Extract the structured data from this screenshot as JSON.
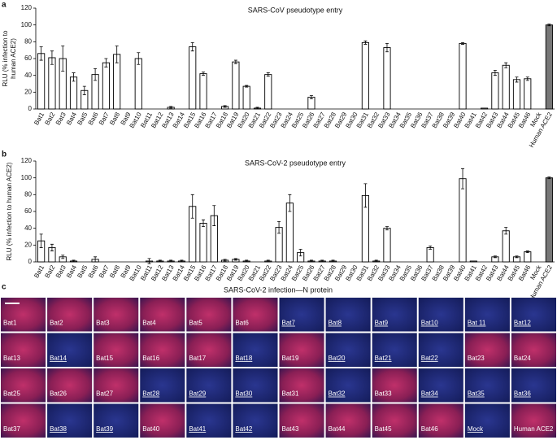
{
  "chart_data": [
    {
      "type": "bar",
      "panel": "a",
      "title": "SARS-CoV pseudotype entry",
      "ylabel": [
        "RLU (% infection to",
        "human ACE2)"
      ],
      "categories": [
        "Bat1",
        "Bat2",
        "Bat3",
        "Bat4",
        "Bat5",
        "Bat6",
        "Bat7",
        "Bat8",
        "Bat9",
        "Bat10",
        "Bat11",
        "Bat12",
        "Bat13",
        "Bat14",
        "Bat15",
        "Bat16",
        "Bat17",
        "Bat18",
        "Bat19",
        "Bat20",
        "Bat21",
        "Bat22",
        "Bat23",
        "Bat24",
        "Bat25",
        "Bat26",
        "Bat27",
        "Bat28",
        "Bat29",
        "Bat30",
        "Bat31",
        "Bat32",
        "Bat33",
        "Bat34",
        "Bat35",
        "Bat36",
        "Bat37",
        "Bat38",
        "Bat39",
        "Bat40",
        "Bat41",
        "Bat42",
        "Bat43",
        "Bat44",
        "Bat45",
        "Bat46",
        "Mock",
        "Human ACE2"
      ],
      "values": [
        66,
        61,
        60,
        38,
        22,
        41,
        55,
        65,
        0,
        60,
        0,
        0,
        2,
        0,
        74,
        42,
        0,
        3,
        56,
        27,
        1,
        41,
        0,
        0,
        0,
        14,
        0,
        0,
        0,
        0,
        79,
        0,
        73,
        0,
        0,
        0,
        0,
        0,
        0,
        78,
        0,
        1,
        43,
        52,
        35,
        36,
        0,
        100
      ],
      "errors": [
        8,
        8,
        15,
        5,
        5,
        7,
        5,
        10,
        0,
        7,
        0,
        0,
        1,
        0,
        5,
        2,
        0,
        1,
        2,
        1,
        1,
        2,
        0,
        0,
        0,
        2,
        0,
        0,
        0,
        0,
        2,
        0,
        5,
        0,
        0,
        0,
        0,
        0,
        0,
        1,
        0,
        0,
        3,
        3,
        3,
        2,
        0,
        1
      ],
      "colors": [
        "#ffffff",
        "#ffffff",
        "#ffffff",
        "#ffffff",
        "#ffffff",
        "#ffffff",
        "#ffffff",
        "#ffffff",
        "#ffffff",
        "#ffffff",
        "#ffffff",
        "#ffffff",
        "#ffffff",
        "#ffffff",
        "#ffffff",
        "#ffffff",
        "#ffffff",
        "#ffffff",
        "#ffffff",
        "#ffffff",
        "#ffffff",
        "#ffffff",
        "#ffffff",
        "#ffffff",
        "#ffffff",
        "#ffffff",
        "#ffffff",
        "#ffffff",
        "#ffffff",
        "#ffffff",
        "#ffffff",
        "#ffffff",
        "#ffffff",
        "#ffffff",
        "#ffffff",
        "#ffffff",
        "#ffffff",
        "#ffffff",
        "#ffffff",
        "#ffffff",
        "#ffffff",
        "#ffffff",
        "#ffffff",
        "#ffffff",
        "#ffffff",
        "#ffffff",
        "#ffffff",
        "#777777"
      ],
      "ylim": [
        0,
        120
      ],
      "yticks": [
        0,
        20,
        40,
        60,
        80,
        100,
        120
      ]
    },
    {
      "type": "bar",
      "panel": "b",
      "title": "SARS-CoV-2 pseudotype entry",
      "ylabel": [
        "RLU (% infection to human ACE2)"
      ],
      "categories": [
        "Bat1",
        "Bat2",
        "Bat3",
        "Bat4",
        "Bat5",
        "Bat6",
        "Bat7",
        "Bat8",
        "Bat9",
        "Bat10",
        "Bat11",
        "Bat12",
        "Bat13",
        "Bat14",
        "Bat15",
        "Bat16",
        "Bat17",
        "Bat18",
        "Bat19",
        "Bat20",
        "Bat21",
        "Bat22",
        "Bat23",
        "Bat24",
        "Bat25",
        "Bat26",
        "Bat27",
        "Bat28",
        "Bat29",
        "Bat30",
        "Bat31",
        "Bat32",
        "Bat33",
        "Bat34",
        "Bat35",
        "Bat36",
        "Bat37",
        "Bat38",
        "Bat39",
        "Bat40",
        "Bat41",
        "Bat42",
        "Bat43",
        "Bat44",
        "Bat45",
        "Bat46",
        "Mock",
        "Human ACE2"
      ],
      "values": [
        25,
        17,
        6,
        1,
        0,
        3,
        0,
        0,
        0,
        0,
        1,
        1,
        1,
        1,
        66,
        46,
        55,
        2,
        3,
        1,
        0,
        1,
        41,
        70,
        11,
        1,
        1,
        1,
        0,
        0,
        79,
        1,
        40,
        0,
        0,
        0,
        17,
        0,
        0,
        99,
        1,
        0,
        6,
        37,
        6,
        12,
        0,
        100
      ],
      "errors": [
        8,
        4,
        2,
        1,
        0,
        3,
        0,
        0,
        0,
        0,
        3,
        1,
        1,
        1,
        14,
        4,
        12,
        1,
        1,
        1,
        0,
        1,
        7,
        10,
        4,
        1,
        1,
        1,
        0,
        0,
        14,
        1,
        2,
        0,
        0,
        0,
        2,
        0,
        0,
        12,
        0,
        0,
        1,
        4,
        1,
        1,
        0,
        1
      ],
      "colors": [
        "#ffffff",
        "#ffffff",
        "#ffffff",
        "#ffffff",
        "#ffffff",
        "#ffffff",
        "#ffffff",
        "#ffffff",
        "#ffffff",
        "#ffffff",
        "#ffffff",
        "#ffffff",
        "#ffffff",
        "#ffffff",
        "#ffffff",
        "#ffffff",
        "#ffffff",
        "#ffffff",
        "#ffffff",
        "#ffffff",
        "#ffffff",
        "#ffffff",
        "#ffffff",
        "#ffffff",
        "#ffffff",
        "#ffffff",
        "#ffffff",
        "#ffffff",
        "#ffffff",
        "#ffffff",
        "#ffffff",
        "#ffffff",
        "#ffffff",
        "#ffffff",
        "#ffffff",
        "#ffffff",
        "#ffffff",
        "#ffffff",
        "#ffffff",
        "#ffffff",
        "#ffffff",
        "#ffffff",
        "#ffffff",
        "#ffffff",
        "#ffffff",
        "#ffffff",
        "#ffffff",
        "#777777"
      ],
      "ylim": [
        0,
        120
      ],
      "yticks": [
        0,
        20,
        40,
        60,
        80,
        100,
        120
      ]
    }
  ],
  "panel_c": {
    "panel": "c",
    "title": "SARS-CoV-2 infection—N protein",
    "tiles": [
      {
        "label": "Bat1",
        "underline": false
      },
      {
        "label": "Bat2",
        "underline": false
      },
      {
        "label": "Bat3",
        "underline": false
      },
      {
        "label": "Bat4",
        "underline": false
      },
      {
        "label": "Bat5",
        "underline": false
      },
      {
        "label": "Bat6",
        "underline": false
      },
      {
        "label": "Bat7",
        "underline": true
      },
      {
        "label": "Bat8",
        "underline": true
      },
      {
        "label": "Bat9",
        "underline": true
      },
      {
        "label": "Bat10",
        "underline": true
      },
      {
        "label": "Bat 11",
        "underline": true
      },
      {
        "label": "Bat12",
        "underline": true
      },
      {
        "label": "Bat13",
        "underline": false
      },
      {
        "label": "Bat14",
        "underline": true
      },
      {
        "label": "Bat15",
        "underline": false
      },
      {
        "label": "Bat16",
        "underline": false
      },
      {
        "label": "Bat17",
        "underline": false
      },
      {
        "label": "Bat18",
        "underline": true
      },
      {
        "label": "Bat19",
        "underline": false
      },
      {
        "label": "Bat20",
        "underline": true
      },
      {
        "label": "Bat21",
        "underline": true
      },
      {
        "label": "Bat22",
        "underline": true
      },
      {
        "label": "Bat23",
        "underline": false
      },
      {
        "label": "Bat24",
        "underline": false
      },
      {
        "label": "Bat25",
        "underline": false
      },
      {
        "label": "Bat26",
        "underline": false
      },
      {
        "label": "Bat27",
        "underline": false
      },
      {
        "label": "Bat28",
        "underline": true
      },
      {
        "label": "Bat29",
        "underline": true
      },
      {
        "label": "Bat30",
        "underline": true
      },
      {
        "label": "Bat31",
        "underline": false
      },
      {
        "label": "Bat32",
        "underline": true
      },
      {
        "label": "Bat33",
        "underline": false
      },
      {
        "label": "Bat34",
        "underline": true
      },
      {
        "label": "Bat35",
        "underline": true
      },
      {
        "label": "Bat36",
        "underline": true
      },
      {
        "label": "Bat37",
        "underline": false
      },
      {
        "label": "Bat38",
        "underline": true
      },
      {
        "label": "Bat39",
        "underline": true
      },
      {
        "label": "Bat40",
        "underline": false
      },
      {
        "label": "Bat41",
        "underline": true
      },
      {
        "label": "Bat42",
        "underline": true
      },
      {
        "label": "Bat43",
        "underline": false
      },
      {
        "label": "Bat44",
        "underline": false
      },
      {
        "label": "Bat45",
        "underline": false
      },
      {
        "label": "Bat46",
        "underline": false
      },
      {
        "label": "Mock",
        "underline": true
      },
      {
        "label": "Human ACE2",
        "underline": false
      }
    ]
  }
}
